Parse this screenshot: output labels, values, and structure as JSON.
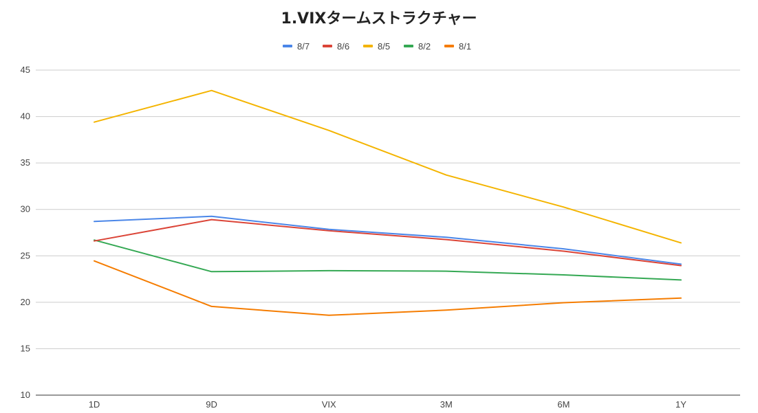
{
  "chart_data": {
    "type": "line",
    "title": "1.VIXタームストラクチャー",
    "categories": [
      "1D",
      "9D",
      "VIX",
      "3M",
      "6M",
      "1Y"
    ],
    "ylim": [
      10,
      45
    ],
    "yticks": [
      10,
      15,
      20,
      25,
      30,
      35,
      40,
      45
    ],
    "grid": true,
    "legend_position": "top",
    "series": [
      {
        "name": "8/7",
        "color": "#4a86e8",
        "values": [
          28.7,
          29.25,
          27.85,
          27.0,
          25.75,
          24.1
        ]
      },
      {
        "name": "8/6",
        "color": "#db4437",
        "values": [
          26.6,
          28.9,
          27.7,
          26.75,
          25.5,
          23.95
        ]
      },
      {
        "name": "8/5",
        "color": "#f4b400",
        "values": [
          39.4,
          42.8,
          38.5,
          33.7,
          30.25,
          26.4
        ]
      },
      {
        "name": "8/2",
        "color": "#34a853",
        "values": [
          26.7,
          23.3,
          23.4,
          23.35,
          22.95,
          22.4
        ]
      },
      {
        "name": "8/1",
        "color": "#f57c00",
        "values": [
          24.45,
          19.55,
          18.6,
          19.15,
          19.95,
          20.45
        ]
      }
    ]
  }
}
